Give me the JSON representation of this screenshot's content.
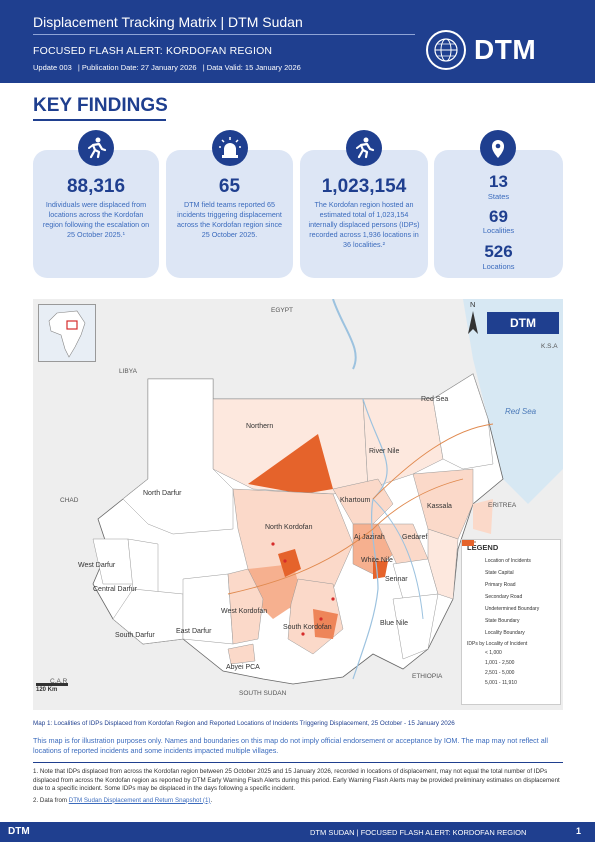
{
  "header": {
    "title": "Displacement Tracking Matrix | DTM Sudan",
    "subtitle": "FOCUSED FLASH ALERT: KORDOFAN REGION",
    "meta": [
      "Update 003",
      "| Publication Date: 27 January 2026",
      "| Data Valid: 15 January 2026"
    ],
    "logo": "DTM",
    "logo_icon": "iom-globe-icon"
  },
  "key_findings": {
    "title": "KEY FINDINGS",
    "cards": [
      {
        "icon": "running-person-icon",
        "value": "88,316",
        "text": "Individuals were displaced from locations across the Kordofan region following the escalation on 25 October 2025.¹"
      },
      {
        "icon": "alarm-siren-icon",
        "value": "65",
        "text": "DTM field teams reported 65 incidents triggering displacement across the Kordofan region since 25 October 2025."
      },
      {
        "icon": "running-person-icon",
        "value": "1,023,154",
        "text": "The Kordofan region hosted an estimated total of 1,023,154 internally displaced persons (IDPs) recorded across 1,936 locations in 36 localities.²"
      }
    ],
    "stats": {
      "icon": "location-pin-icon",
      "items": [
        {
          "value": "13",
          "label": "States"
        },
        {
          "value": "69",
          "label": "Localities"
        },
        {
          "value": "526",
          "label": "Locations"
        }
      ]
    }
  },
  "map": {
    "countries": [
      "EGYPT",
      "LIBYA",
      "CHAD",
      "ERITREA",
      "ETHIOPIA",
      "C.A.R",
      "SOUTH SUDAN",
      "K.S.A"
    ],
    "sea": "Red Sea",
    "states": [
      "Northern",
      "River Nile",
      "Red Sea",
      "North Darfur",
      "Khartoum",
      "Kassala",
      "North Kordofan",
      "Gedaref",
      "Aj Jazirah",
      "White Nile",
      "Sennar",
      "West Darfur",
      "Central Darfur",
      "West Kordofan",
      "South Darfur",
      "East Darfur",
      "South Kordofan",
      "Blue Nile",
      "Abyei PCA"
    ],
    "scale": "120 Km",
    "north": "N",
    "logo": "DTM",
    "legend": {
      "title": "LEGEND",
      "items": [
        "Location of Incidents",
        "State Capital",
        "Primary Road",
        "Secondary Road",
        "Undetermined Boundary",
        "State Boundary",
        "Locality Boundary"
      ],
      "idp_title": "IDPs by Locality of Incident",
      "ranges": [
        {
          "label": "< 1,000",
          "color": "#fbd9c9"
        },
        {
          "label": "1,001 - 2,500",
          "color": "#f6b08f"
        },
        {
          "label": "2,501 - 5,000",
          "color": "#ee8559"
        },
        {
          "label": "5,001 - 11,910",
          "color": "#e5632b"
        }
      ]
    }
  },
  "caption": "Map 1: Localities of IDPs Displaced from Kordofan Region and Reported Locations of Incidents Triggering Displacement, 25 October - 15 January 2026",
  "disclaimer": "This map is for illustration purposes only. Names and boundaries on this map do not imply official endorsement or acceptance by IOM. The map may not reflect all locations of reported incidents and some incidents impacted multiple villages.",
  "notes": {
    "note1": "1. Note that IDPs displaced from across the Kordofan region between 25 October 2025 and 15 January 2026, recorded in locations of displacement, may not equal the total number of IDPs displaced from across the Kordofan region as reported by DTM Early Warning Flash Alerts during this period. Early Warning Flash Alerts may be provided preliminary estimates on displacement due to a specific incident. Some IDPs may be displaced in the days following a specific incident.",
    "note2_prefix": "2. Data from ",
    "note2_link": "DTM Sudan Displacement and Return Snapshot (1)",
    "note2_suffix": "."
  },
  "footer": {
    "logo": "DTM",
    "text": "DTM SUDAN | FOCUSED FLASH ALERT: KORDOFAN REGION",
    "page": "1"
  }
}
